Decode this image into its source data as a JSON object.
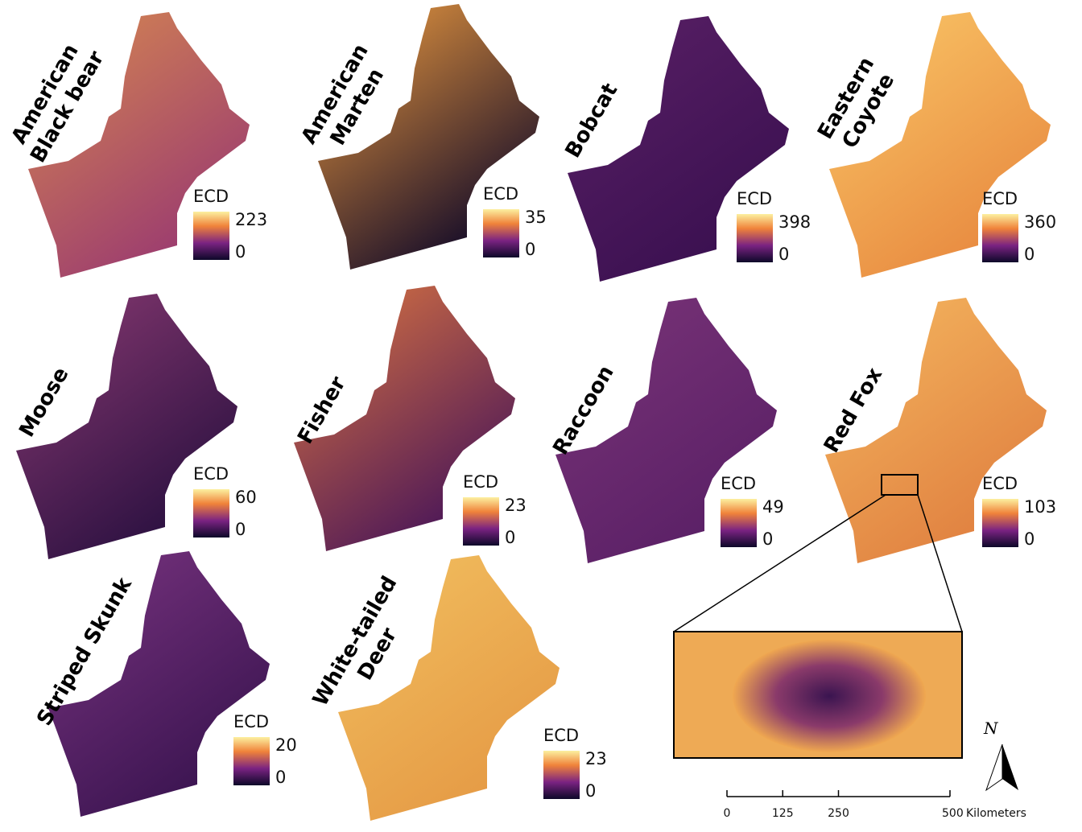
{
  "panels": [
    {
      "title": [
        "American",
        "Black bear"
      ],
      "legend_title": "ECD",
      "legend_max": 223,
      "legend_min": 0
    },
    {
      "title": [
        "American",
        "Marten"
      ],
      "legend_title": "ECD",
      "legend_max": 35,
      "legend_min": 0
    },
    {
      "title": [
        "Bobcat"
      ],
      "legend_title": "ECD",
      "legend_max": 398,
      "legend_min": 0
    },
    {
      "title": [
        "Eastern",
        "Coyote"
      ],
      "legend_title": "ECD",
      "legend_max": 360,
      "legend_min": 0
    },
    {
      "title": [
        "Moose"
      ],
      "legend_title": "ECD",
      "legend_max": 60,
      "legend_min": 0
    },
    {
      "title": [
        "Fisher"
      ],
      "legend_title": "ECD",
      "legend_max": 23,
      "legend_min": 0
    },
    {
      "title": [
        "Raccoon"
      ],
      "legend_title": "ECD",
      "legend_max": 49,
      "legend_min": 0
    },
    {
      "title": [
        "Red Fox"
      ],
      "legend_title": "ECD",
      "legend_max": 103,
      "legend_min": 0
    },
    {
      "title": [
        "Striped Skunk"
      ],
      "legend_title": "ECD",
      "legend_max": 20,
      "legend_min": 0
    },
    {
      "title": [
        "White-tailed",
        "Deer"
      ],
      "legend_title": "ECD",
      "legend_max": 23,
      "legend_min": 0
    }
  ],
  "scale_bar": {
    "ticks": [
      0,
      125,
      250,
      500
    ],
    "unit": "Kilometers"
  },
  "north_arrow": "N"
}
